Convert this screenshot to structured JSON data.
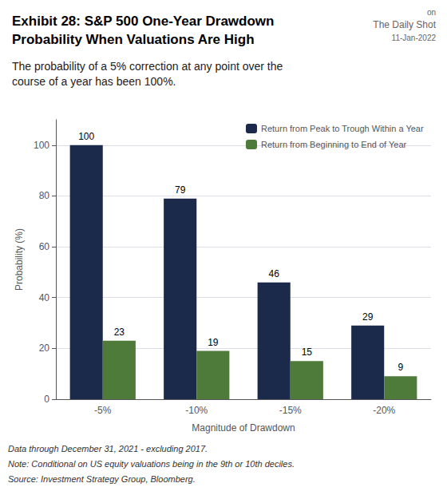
{
  "chart_data": {
    "type": "bar",
    "title": [
      "Exhibit 28: S&P 500 One-Year Drawdown",
      "Probability When Valuations Are High"
    ],
    "subtitle": [
      "The probability of a 5% correction at any point over the",
      "course of a year has been 100%."
    ],
    "annotations": [
      "on",
      "The Daily Shot",
      "11-Jan-2022",
      "Data through December 31, 2021 - excluding 2017.",
      "Note: Conditional on US equity valuations being in the 9th or 10th deciles.",
      "Source: Investment Strategy Group, Bloomberg."
    ],
    "xlabel": "Magnitude of Drawdown",
    "ylabel": "Probability (%)",
    "categories": [
      "-5%",
      "-10%",
      "-15%",
      "-20%"
    ],
    "series": [
      {
        "name": "Return from Peak to Trough Within a Year",
        "color": "#1B2A4A",
        "values": [
          100,
          79,
          46,
          29
        ]
      },
      {
        "name": "Return from Beginning to End of Year",
        "color": "#4E7A3A",
        "values": [
          23,
          19,
          15,
          9
        ]
      }
    ],
    "ylim": [
      0,
      110
    ],
    "yticks": [
      0,
      20,
      40,
      60,
      80,
      100
    ],
    "grid": true,
    "legend": "upper right",
    "data_labels": true
  }
}
